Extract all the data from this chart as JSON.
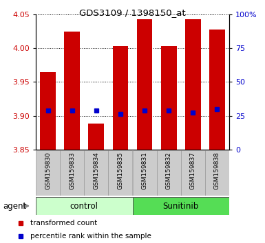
{
  "title": "GDS3109 / 1398150_at",
  "samples": [
    "GSM159830",
    "GSM159833",
    "GSM159834",
    "GSM159835",
    "GSM159831",
    "GSM159832",
    "GSM159837",
    "GSM159838"
  ],
  "bar_tops": [
    3.965,
    4.025,
    3.888,
    4.003,
    4.043,
    4.003,
    4.043,
    4.028
  ],
  "bar_bottoms": [
    3.85,
    3.85,
    3.85,
    3.85,
    3.85,
    3.85,
    3.85,
    3.85
  ],
  "blue_dots": [
    3.908,
    3.908,
    3.908,
    3.903,
    3.908,
    3.908,
    3.905,
    3.91
  ],
  "bar_color": "#cc0000",
  "dot_color": "#0000cc",
  "ylim_left": [
    3.85,
    4.05
  ],
  "yticks_left": [
    3.85,
    3.9,
    3.95,
    4.0,
    4.05
  ],
  "ylim_right": [
    0,
    100
  ],
  "yticks_right": [
    0,
    25,
    50,
    75,
    100
  ],
  "yticklabels_right": [
    "0",
    "25",
    "50",
    "75",
    "100%"
  ],
  "groups": [
    {
      "label": "control",
      "indices": [
        0,
        3
      ],
      "color": "#ccffcc"
    },
    {
      "label": "Sunitinib",
      "indices": [
        4,
        7
      ],
      "color": "#55dd55"
    }
  ],
  "group_row_label": "agent",
  "left_tick_color": "#cc0000",
  "right_tick_color": "#0000cc",
  "bar_width": 0.65,
  "grid_color": "black"
}
